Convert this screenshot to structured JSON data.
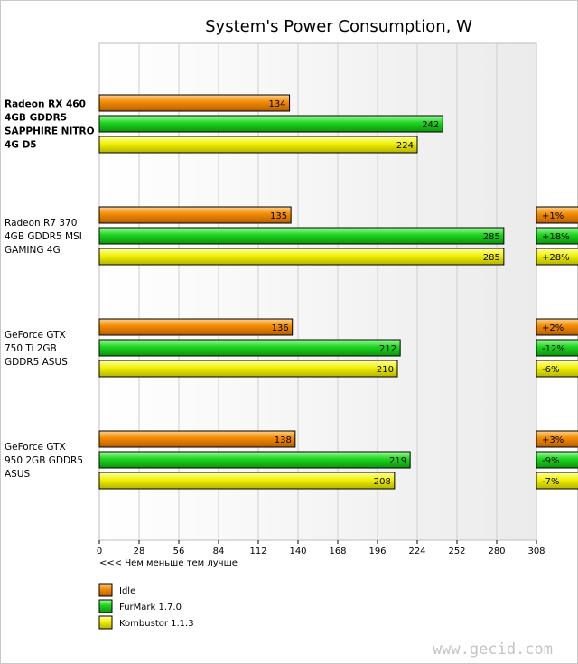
{
  "chart_data": {
    "type": "bar",
    "orientation": "horizontal",
    "title": "System's Power Consumption, W",
    "xlabel": "<<< Чем меньше тем лучше",
    "xlim": [
      0,
      308
    ],
    "xticks": [
      0,
      28,
      56,
      84,
      112,
      140,
      168,
      196,
      224,
      252,
      280,
      308
    ],
    "grid": true,
    "legend_placement": "bottom-left",
    "categories": [
      {
        "label_lines": [
          "Radeon RX 460",
          "4GB GDDR5",
          "SAPPHIRE NITRO",
          "4G D5"
        ],
        "bold": true
      },
      {
        "label_lines": [
          "Radeon R7 370",
          "4GB GDDR5 MSI",
          "GAMING 4G"
        ],
        "bold": false
      },
      {
        "label_lines": [
          "GeForce GTX",
          "750 Ti 2GB",
          "GDDR5 ASUS"
        ],
        "bold": false
      },
      {
        "label_lines": [
          "GeForce GTX",
          "950 2GB GDDR5",
          "ASUS"
        ],
        "bold": false
      }
    ],
    "series": [
      {
        "name": "Idle",
        "color": "#f08a00",
        "values": [
          134,
          135,
          136,
          138
        ],
        "diffs": [
          "",
          "+1%",
          "+2%",
          "+3%"
        ]
      },
      {
        "name": "FurMark 1.7.0",
        "color": "#1ed21e",
        "values": [
          242,
          285,
          212,
          219
        ],
        "diffs": [
          "",
          "+18%",
          "-12%",
          "-9%"
        ]
      },
      {
        "name": "Kombustor 1.1.3",
        "color": "#f0f000",
        "values": [
          224,
          285,
          210,
          208
        ],
        "diffs": [
          "",
          "+28%",
          "-6%",
          "-7%"
        ]
      }
    ]
  },
  "watermark": "www.gecid.com"
}
